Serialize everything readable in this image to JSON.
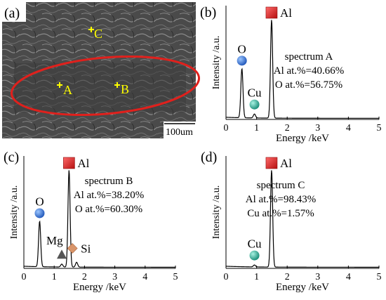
{
  "sem_panel": {
    "label": "(a)",
    "scale_bar": "100um",
    "points": [
      {
        "name": "C",
        "label": "C"
      },
      {
        "name": "A",
        "label": "A"
      },
      {
        "name": "B",
        "label": "B"
      }
    ],
    "ellipse_color": "#e0201c",
    "marker_color": "#ffff00"
  },
  "colors": {
    "al_marker": "#d81e1e",
    "o_marker": "#2f6fd6",
    "cu_marker": "#27b8a0",
    "mg_marker": "#555555",
    "si_marker": "#d9956a"
  },
  "chart_data": [
    {
      "id": "b",
      "type": "line",
      "panel_label": "(b)",
      "xlabel": "Energy /keV",
      "ylabel": "Intensity /a.u.",
      "xlim": [
        0,
        5
      ],
      "xticks": [
        "0",
        "1",
        "2",
        "3",
        "4",
        "5"
      ],
      "annotation_title": "spectrum A",
      "annotation_lines": [
        "Al at.%=40.66%",
        "O at.%=56.75%"
      ],
      "peaks": [
        {
          "element": "O",
          "label": "O",
          "x": 0.52,
          "height": 0.5,
          "marker": "circle",
          "color": "#2f6fd6"
        },
        {
          "element": "Cu",
          "label": "Cu",
          "x": 0.93,
          "height": 0.04,
          "marker": "circle",
          "color": "#27b8a0"
        },
        {
          "element": "Al",
          "label": "Al",
          "x": 1.49,
          "height": 1.0,
          "marker": "square",
          "color": "#d81e1e"
        }
      ]
    },
    {
      "id": "c",
      "type": "line",
      "panel_label": "(c)",
      "xlabel": "Energy /keV",
      "ylabel": "Intensity /a.u.",
      "xlim": [
        0,
        5
      ],
      "xticks": [
        "0",
        "1",
        "2",
        "3",
        "4",
        "5"
      ],
      "annotation_title": "spectrum B",
      "annotation_lines": [
        "Al at.%=38.20%",
        "O at.%=60.30%"
      ],
      "peaks": [
        {
          "element": "O",
          "label": "O",
          "x": 0.52,
          "height": 0.47,
          "marker": "circle",
          "color": "#2f6fd6"
        },
        {
          "element": "Mg",
          "label": "Mg",
          "x": 1.25,
          "height": 0.03,
          "marker": "triangle",
          "color": "#555555"
        },
        {
          "element": "Al",
          "label": "Al",
          "x": 1.49,
          "height": 1.0,
          "marker": "square",
          "color": "#d81e1e"
        },
        {
          "element": "Si",
          "label": "Si",
          "x": 1.74,
          "height": 0.05,
          "marker": "diamond",
          "color": "#d9956a"
        }
      ]
    },
    {
      "id": "d",
      "type": "line",
      "panel_label": "(d)",
      "xlabel": "Energy /keV",
      "ylabel": "Intensity /a.u.",
      "xlim": [
        0,
        5
      ],
      "xticks": [
        "0",
        "1",
        "2",
        "3",
        "4",
        "5"
      ],
      "annotation_title": "spectrum C",
      "annotation_lines": [
        "Al at.%=98.43%",
        "Cu at.%=1.57%"
      ],
      "peaks": [
        {
          "element": "Cu",
          "label": "Cu",
          "x": 0.93,
          "height": 0.02,
          "marker": "circle",
          "color": "#27b8a0"
        },
        {
          "element": "Al",
          "label": "Al",
          "x": 1.49,
          "height": 1.0,
          "marker": "square",
          "color": "#d81e1e"
        }
      ]
    }
  ]
}
